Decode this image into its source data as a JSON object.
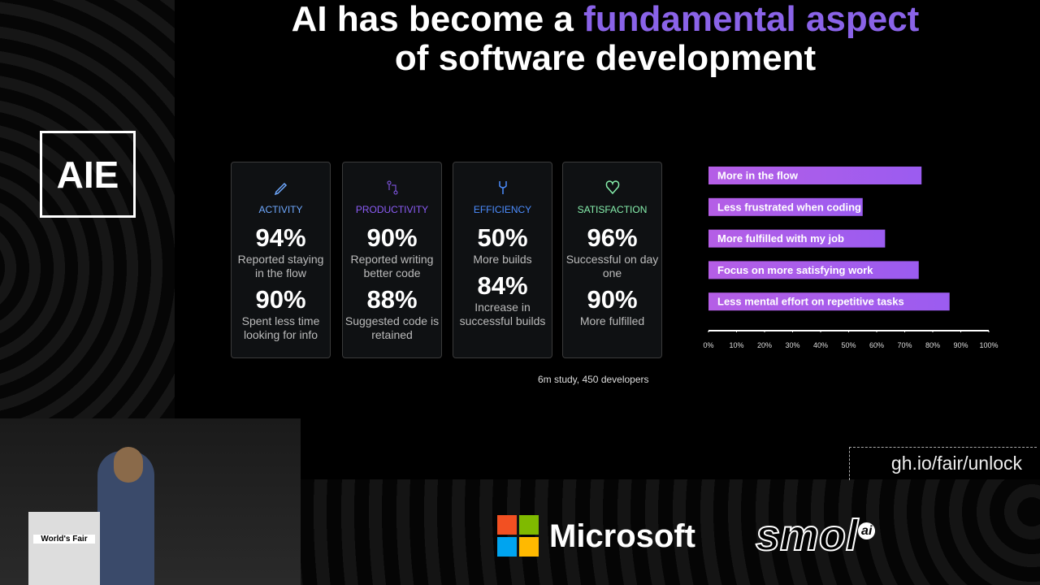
{
  "header": {
    "title_start": "AI has become a ",
    "title_highlight": "fundamental aspect",
    "title_line2": "of software development"
  },
  "logo": "AIE",
  "cards": [
    {
      "label": "ACTIVITY",
      "color": "#6ea8fe",
      "stats": [
        {
          "value": "94%",
          "caption": "Reported staying in the flow"
        },
        {
          "value": "90%",
          "caption": "Spent less time looking for info"
        }
      ]
    },
    {
      "label": "PRODUCTIVITY",
      "color": "#8b5cf6",
      "stats": [
        {
          "value": "90%",
          "caption": "Reported writing better code"
        },
        {
          "value": "88%",
          "caption": "Suggested code is retained"
        }
      ]
    },
    {
      "label": "EFFICIENCY",
      "color": "#4c8dff",
      "stats": [
        {
          "value": "50%",
          "caption": "More builds"
        },
        {
          "value": "84%",
          "caption": "Increase in successful builds"
        }
      ]
    },
    {
      "label": "SATISFACTION",
      "color": "#86efac",
      "stats": [
        {
          "value": "96%",
          "caption": "Successful on day one"
        },
        {
          "value": "90%",
          "caption": "More fulfilled"
        }
      ]
    }
  ],
  "footnote": "6m study, 450 developers",
  "chart_data": {
    "type": "bar",
    "orientation": "horizontal",
    "color": "#b55ee6",
    "categories": [
      "More in the flow",
      "Less frustrated when coding",
      "More fulfilled with my job",
      "Focus on more satisfying work",
      "Less mental effort on repetitive tasks"
    ],
    "values": [
      76,
      55,
      63,
      75,
      86
    ],
    "xlim": [
      0,
      100
    ],
    "xticks": [
      {
        "value": 0,
        "label": "0%"
      },
      {
        "value": 10,
        "label": "10%"
      },
      {
        "value": 20,
        "label": "20%"
      },
      {
        "value": 30,
        "label": "30%"
      },
      {
        "value": 40,
        "label": "40%"
      },
      {
        "value": 50,
        "label": "50%"
      },
      {
        "value": 60,
        "label": "60%"
      },
      {
        "value": 70,
        "label": "70%"
      },
      {
        "value": 80,
        "label": "80%"
      },
      {
        "value": 90,
        "label": "90%"
      },
      {
        "value": 100,
        "label": "100%"
      }
    ]
  },
  "link": "gh.io/fair/unlock",
  "sponsors": {
    "microsoft": "Microsoft",
    "smol": "smol",
    "smol_badge": "ai"
  },
  "podium": "World's Fair"
}
